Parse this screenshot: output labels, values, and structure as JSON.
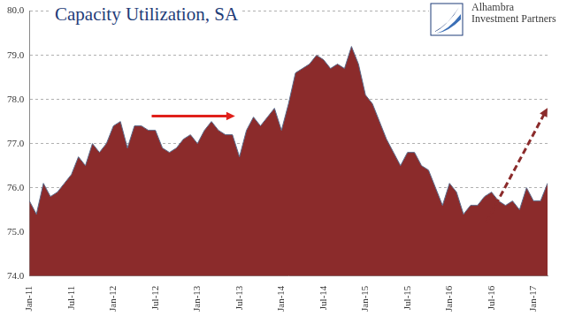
{
  "chart_data": {
    "type": "area",
    "title": "Capacity Utilization, SA",
    "annotations": [
      "Alhambra Investment Partners"
    ],
    "categories": [
      "Jan-11",
      null,
      null,
      null,
      null,
      null,
      "Jul-11",
      null,
      null,
      null,
      null,
      null,
      "Jan-12",
      null,
      null,
      null,
      null,
      null,
      "Jul-12",
      null,
      null,
      null,
      null,
      null,
      "Jan-13",
      null,
      null,
      null,
      null,
      null,
      "Jul-13",
      null,
      null,
      null,
      null,
      null,
      "Jan-14",
      null,
      null,
      null,
      null,
      null,
      "Jul-14",
      null,
      null,
      null,
      null,
      null,
      "Jan-15",
      null,
      null,
      null,
      null,
      null,
      "Jul-15",
      null,
      null,
      null,
      null,
      null,
      "Jan-16",
      null,
      null,
      null,
      null,
      null,
      "Jul-16",
      null,
      null,
      null,
      null,
      null,
      "Jan-17",
      null,
      null
    ],
    "values": [
      75.7,
      75.4,
      76.1,
      75.8,
      75.9,
      76.1,
      76.3,
      76.7,
      76.5,
      77.0,
      76.8,
      77.0,
      77.4,
      77.5,
      76.9,
      77.4,
      77.4,
      77.3,
      77.3,
      76.9,
      76.8,
      76.9,
      77.1,
      77.2,
      77.0,
      77.3,
      77.5,
      77.3,
      77.2,
      77.2,
      76.7,
      77.3,
      77.6,
      77.4,
      77.6,
      77.8,
      77.3,
      77.9,
      78.6,
      78.7,
      78.8,
      79.0,
      78.9,
      78.7,
      78.8,
      78.7,
      79.2,
      78.8,
      78.1,
      77.9,
      77.5,
      77.1,
      76.8,
      76.5,
      76.8,
      76.8,
      76.5,
      76.4,
      76.0,
      75.6,
      76.1,
      75.9,
      75.4,
      75.6,
      75.6,
      75.8,
      75.9,
      75.7,
      75.6,
      75.7,
      75.5,
      76.0,
      75.7,
      75.7,
      76.1
    ],
    "color": "#8b2b2b",
    "ylim": [
      74,
      80
    ],
    "yticks": [
      {
        "value": 74,
        "label": "74.0"
      },
      {
        "value": 75,
        "label": "75.0"
      },
      {
        "value": 76,
        "label": "76.0"
      },
      {
        "value": 77,
        "label": "77.0"
      },
      {
        "value": 78,
        "label": "78.0"
      },
      {
        "value": 79,
        "label": "79.0"
      },
      {
        "value": 80,
        "label": "80.0"
      }
    ],
    "grid": true
  }
}
